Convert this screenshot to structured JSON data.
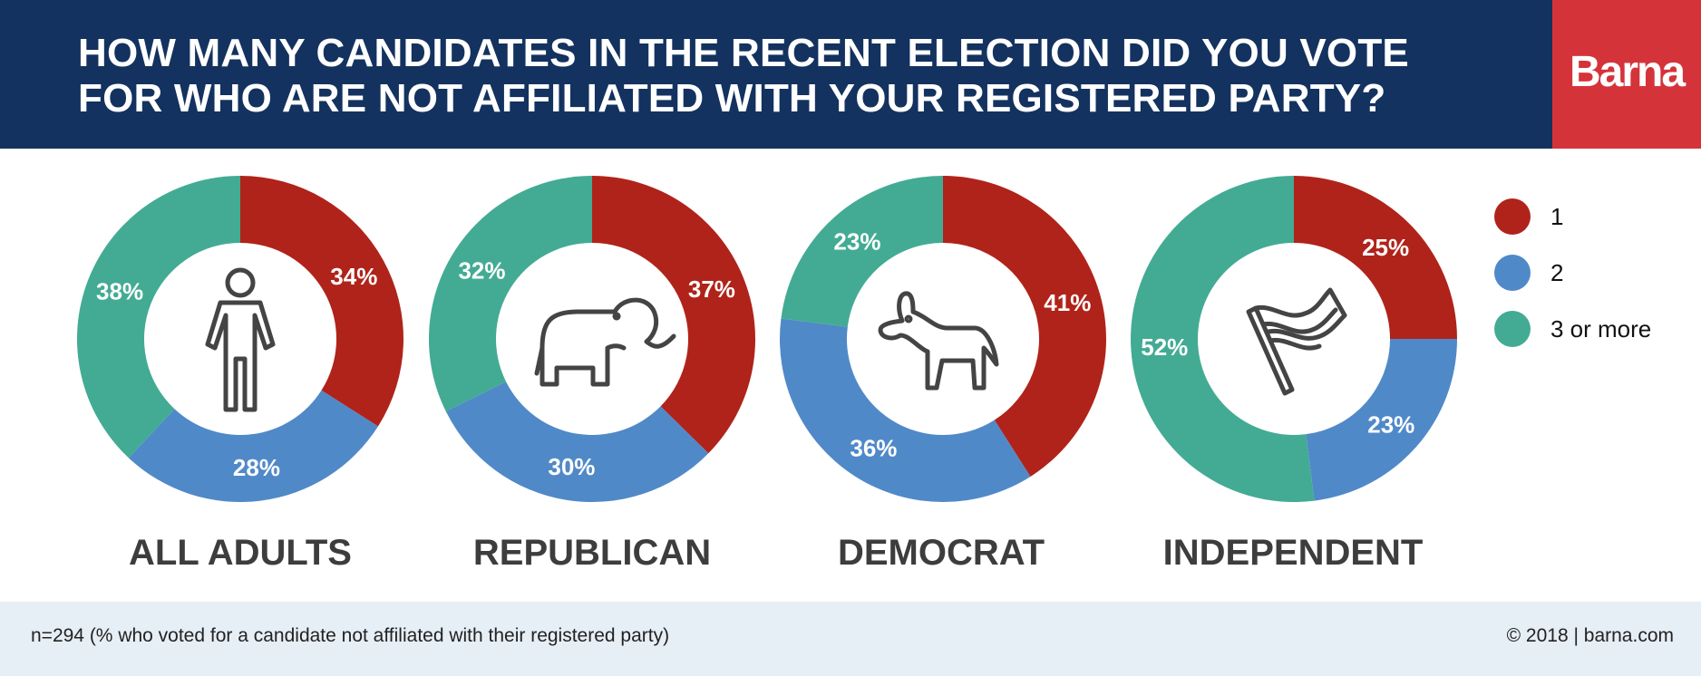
{
  "header": {
    "title_line1": "HOW MANY CANDIDATES IN THE RECENT ELECTION DID YOU VOTE",
    "title_line2": "FOR WHO ARE NOT AFFILIATED WITH YOUR REGISTERED PARTY?",
    "logo": "Barna"
  },
  "colors": {
    "header_bg": "#13325f",
    "logo_bg": "#d5333a",
    "one": "#b0231a",
    "two": "#5089c8",
    "three_or_more": "#43ab93"
  },
  "footer": {
    "note": "n=294 (% who voted for a candidate not affiliated with their registered party)",
    "credit": "© 2018 | barna.com"
  },
  "chart_data": {
    "type": "pie",
    "subtype": "donut",
    "title": "HOW MANY CANDIDATES IN THE RECENT ELECTION DID YOU VOTE FOR WHO ARE NOT AFFILIATED WITH YOUR REGISTERED PARTY?",
    "legend": {
      "position": "right",
      "entries": [
        "1",
        "2",
        "3 or more"
      ]
    },
    "categories": [
      "1",
      "2",
      "3 or more"
    ],
    "groups": [
      {
        "name": "ALL ADULTS",
        "icon": "person-icon",
        "values": [
          34,
          28,
          38
        ],
        "labels": [
          "34%",
          "28%",
          "38%"
        ]
      },
      {
        "name": "REPUBLICAN",
        "icon": "elephant-icon",
        "values": [
          37,
          30,
          32
        ],
        "labels": [
          "37%",
          "30%",
          "32%"
        ]
      },
      {
        "name": "DEMOCRAT",
        "icon": "donkey-icon",
        "values": [
          41,
          36,
          23
        ],
        "labels": [
          "41%",
          "36%",
          "23%"
        ]
      },
      {
        "name": "INDEPENDENT",
        "icon": "flag-icon",
        "values": [
          25,
          23,
          52
        ],
        "labels": [
          "25%",
          "23%",
          "52%"
        ]
      }
    ],
    "units": "%"
  }
}
